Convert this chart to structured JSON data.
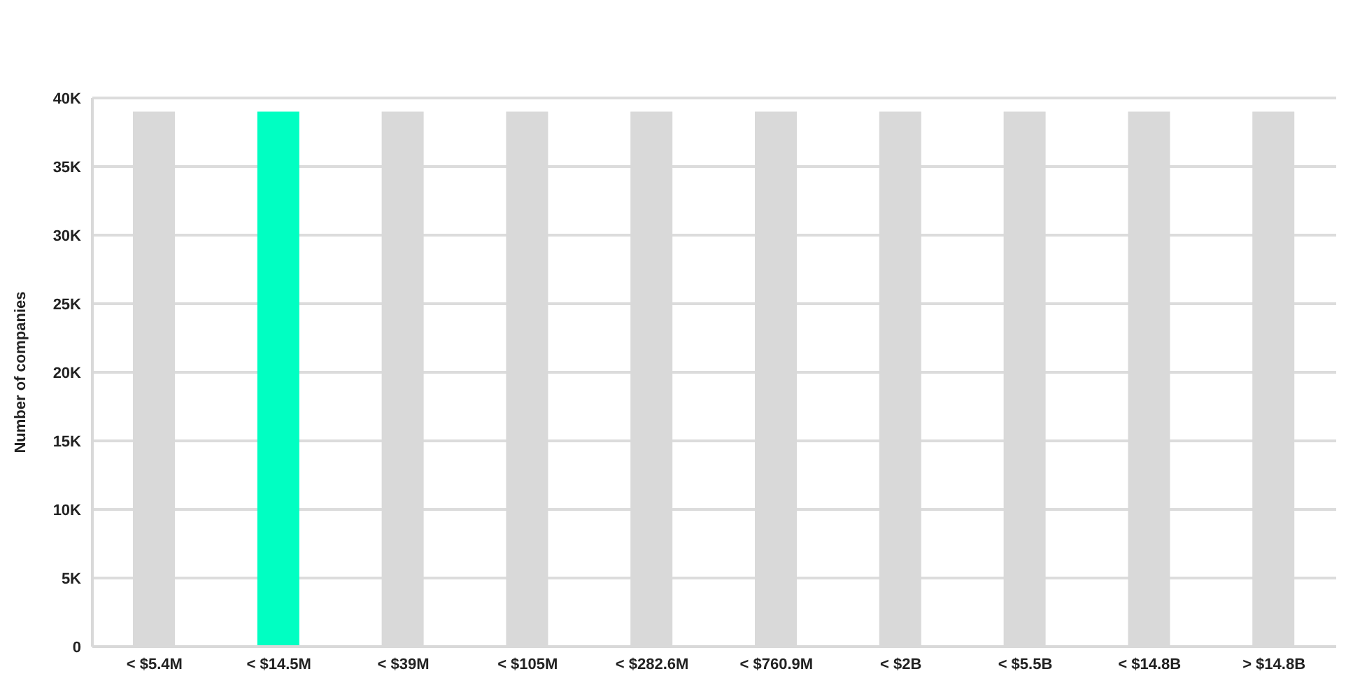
{
  "chart_data": {
    "type": "bar",
    "ylabel": "Number of companies",
    "categories": [
      "< $5.4M",
      "< $14.5M",
      "< $39M",
      "< $105M",
      "< $282.6M",
      "< $760.9M",
      "< $2B",
      "< $5.5B",
      "< $14.8B",
      "> $14.8B"
    ],
    "values": [
      39000,
      39000,
      39000,
      39000,
      39000,
      39000,
      39000,
      39000,
      39000,
      39000
    ],
    "colors": [
      "#d9d9d9",
      "#00ffc2",
      "#d9d9d9",
      "#d9d9d9",
      "#d9d9d9",
      "#d9d9d9",
      "#d9d9d9",
      "#d9d9d9",
      "#d9d9d9",
      "#d9d9d9"
    ],
    "ylim": [
      0,
      40000
    ],
    "yticks": [
      {
        "value": 0,
        "label": "0"
      },
      {
        "value": 5000,
        "label": "5K"
      },
      {
        "value": 10000,
        "label": "10K"
      },
      {
        "value": 15000,
        "label": "15K"
      },
      {
        "value": 20000,
        "label": "20K"
      },
      {
        "value": 25000,
        "label": "25K"
      },
      {
        "value": 30000,
        "label": "30K"
      },
      {
        "value": 35000,
        "label": "35K"
      },
      {
        "value": 40000,
        "label": "40K"
      }
    ],
    "grid": "y"
  }
}
